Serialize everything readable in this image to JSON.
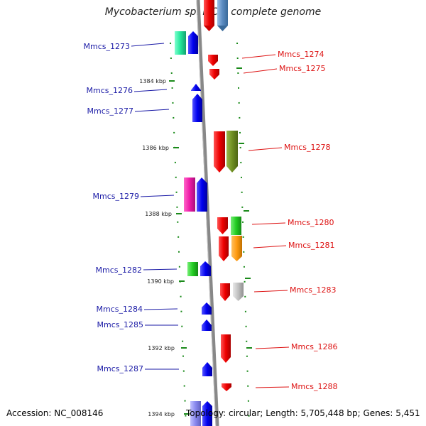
{
  "title": "Mycobacterium sp. MCS, complete genome",
  "accession": "Accession: NC_008146",
  "stats": "Topology: circular; Length: 5,705,448 bp; Genes: 5,451",
  "colors": {
    "left_labels": "#1a1aa6",
    "right_labels": "#dd1111",
    "scale_ticks": "#1a8a1a",
    "backbone": "#888888"
  },
  "scale": {
    "unit": "kbp",
    "ticks": [
      {
        "label": "1384 kbp",
        "kbp": 1384
      },
      {
        "label": "1386 kbp",
        "kbp": 1386
      },
      {
        "label": "1388 kbp",
        "kbp": 1388
      },
      {
        "label": "1390 kbp",
        "kbp": 1390
      },
      {
        "label": "1392 kbp",
        "kbp": 1392
      },
      {
        "label": "1394 kbp",
        "kbp": 1394
      }
    ]
  },
  "left_genes": [
    {
      "label": "Mmcs_1273",
      "strand": "reverse"
    },
    {
      "label": "Mmcs_1276",
      "strand": "reverse"
    },
    {
      "label": "Mmcs_1277",
      "strand": "reverse"
    },
    {
      "label": "Mmcs_1279",
      "strand": "reverse"
    },
    {
      "label": "Mmcs_1282",
      "strand": "reverse"
    },
    {
      "label": "Mmcs_1284",
      "strand": "reverse"
    },
    {
      "label": "Mmcs_1285",
      "strand": "reverse"
    },
    {
      "label": "Mmcs_1287",
      "strand": "reverse"
    }
  ],
  "right_genes": [
    {
      "label": "Mmcs_1274",
      "strand": "forward"
    },
    {
      "label": "Mmcs_1275",
      "strand": "forward"
    },
    {
      "label": "Mmcs_1278",
      "strand": "forward"
    },
    {
      "label": "Mmcs_1280",
      "strand": "forward"
    },
    {
      "label": "Mmcs_1281",
      "strand": "forward"
    },
    {
      "label": "Mmcs_1283",
      "strand": "forward"
    },
    {
      "label": "Mmcs_1286",
      "strand": "forward"
    },
    {
      "label": "Mmcs_1288",
      "strand": "forward"
    }
  ]
}
